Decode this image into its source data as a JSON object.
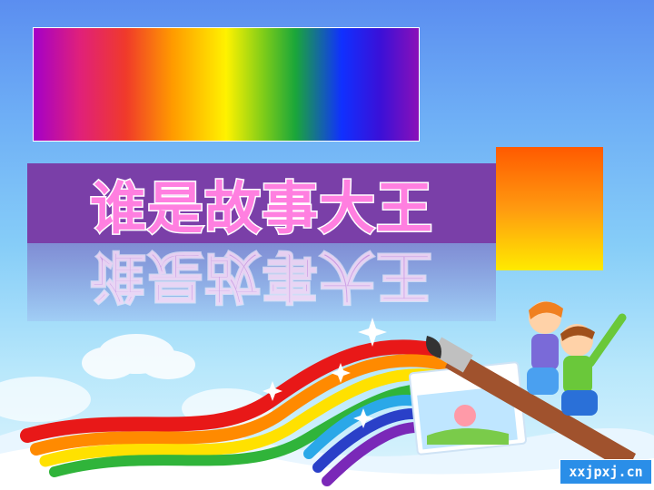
{
  "slide": {
    "title": "谁是故事大王",
    "title_color": "#ff7fe0",
    "band_color": "#7a3fa8"
  },
  "watermark": {
    "text": "xxjpxj.cn"
  },
  "decor": {
    "spectrum_bar": "rainbow-gradient",
    "accent_block": "orange-yellow-gradient",
    "illustration": "children-riding-paintbrush-over-rainbow"
  }
}
